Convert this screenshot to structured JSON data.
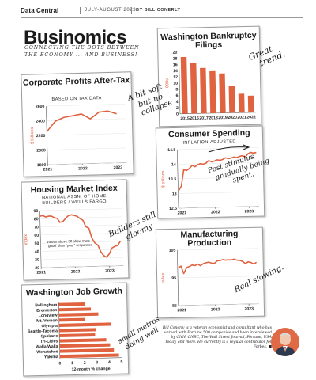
{
  "header": {
    "brand": "Data Central",
    "issue": "JULY-AUGUST 2023",
    "byline": "BY BILL CONERLY"
  },
  "masthead": "Businomics",
  "tagline": "CONNECTING THE DOTS BETWEEN THE ECONOMY ... AND BUSINESS!",
  "colors": {
    "accent": "#e0623f",
    "ink": "#1a1a1a"
  },
  "notes": {
    "bankruptcy": [
      "Great",
      "trend."
    ],
    "profits": [
      "A bit soft",
      "but no",
      "collapse"
    ],
    "spending": [
      "Post stimulus",
      "gradually being",
      "spent."
    ],
    "housing": [
      "Builders still",
      "gloomy"
    ],
    "manufacturing": [
      "Real slowing."
    ],
    "jobs": [
      "small metros",
      "doing well"
    ]
  },
  "bio": "Bill Conerly is a veteran economist and consultant who has worked with Fortune 500 companies and been interviewed by CNN, CNBC, The Wall Street Journal, Fortune, USA Today, and more. He currently is a regular contributor for Forbes. ■",
  "avatar_icon": "person-portrait-icon",
  "chart_data": [
    {
      "id": "bankruptcy",
      "type": "bar",
      "title": "Washington Bankruptcy Filings",
      "ylabel": "000s",
      "ylim": [
        0,
        20
      ],
      "yticks": [
        0,
        2,
        4,
        6,
        8,
        10,
        12,
        14,
        16,
        18,
        20
      ],
      "categories": [
        "2015",
        "2016",
        "2017",
        "2018",
        "2019",
        "2020",
        "2021",
        "2022"
      ],
      "values": [
        18.4,
        16.5,
        14.7,
        13.6,
        12.8,
        8.7,
        6.1,
        5.4
      ]
    },
    {
      "id": "profits",
      "type": "line",
      "title": "Corporate Profits After-Tax",
      "subtitle": "BASED ON TAX DATA",
      "ylabel": "$ billions",
      "ylim": [
        1800,
        2600
      ],
      "yticks": [
        1800,
        2000,
        2200,
        2400,
        2600
      ],
      "xticks": [
        2021,
        2022,
        2023
      ],
      "x": [
        2021.0,
        2021.25,
        2021.5,
        2021.75,
        2022.0,
        2022.25,
        2022.5,
        2022.75,
        2023.0
      ],
      "y": [
        2250,
        2390,
        2440,
        2460,
        2480,
        2410,
        2500,
        2510,
        2470
      ]
    },
    {
      "id": "spending",
      "type": "line",
      "title": "Consumer Spending",
      "subtitle": "INFLATION-ADJUSTED",
      "ylabel": "$ trillions",
      "ylim": [
        12.5,
        14.5
      ],
      "yticks": [
        12.5,
        13.0,
        13.5,
        14.0,
        14.5
      ],
      "xticks": [
        2021,
        2022,
        2023
      ],
      "x": [
        2020.92,
        2021.0,
        2021.08,
        2021.17,
        2021.25,
        2021.33,
        2021.42,
        2021.5,
        2021.58,
        2021.67,
        2021.75,
        2021.83,
        2021.92,
        2022.0,
        2022.08,
        2022.17,
        2022.25,
        2022.33,
        2022.42,
        2022.5,
        2022.58,
        2022.67,
        2022.75,
        2022.83,
        2022.92,
        2023.0,
        2023.08,
        2023.17,
        2023.25
      ],
      "y": [
        13.1,
        13.25,
        13.8,
        13.78,
        13.85,
        13.95,
        13.9,
        13.97,
        14.0,
        13.98,
        14.02,
        14.1,
        14.05,
        14.08,
        14.12,
        14.1,
        14.13,
        14.18,
        14.15,
        14.17,
        14.2,
        14.18,
        14.22,
        14.24,
        14.2,
        14.3,
        14.35,
        14.32,
        14.34
      ]
    },
    {
      "id": "housing",
      "type": "line",
      "title": "Housing Market Index",
      "subtitle": "NATIONAL ASSN. OF HOME BUILDERS / WELLS FARGO",
      "ylabel": "index",
      "annotation": "values above 50 show more \"good\" than \"poor\" responses",
      "ylim": [
        20,
        90
      ],
      "yticks": [
        20,
        30,
        40,
        50,
        60,
        70,
        80,
        90
      ],
      "xticks": [
        2021,
        2022,
        2023
      ],
      "x": [
        2021.0,
        2021.08,
        2021.17,
        2021.25,
        2021.33,
        2021.42,
        2021.5,
        2021.58,
        2021.67,
        2021.75,
        2021.83,
        2021.92,
        2022.0,
        2022.08,
        2022.17,
        2022.25,
        2022.33,
        2022.42,
        2022.5,
        2022.58,
        2022.67,
        2022.75,
        2022.83,
        2022.92,
        2023.0,
        2023.08,
        2023.17,
        2023.25,
        2023.33
      ],
      "y": [
        83,
        84,
        82,
        83,
        83,
        81,
        80,
        75,
        76,
        80,
        83,
        84,
        83,
        82,
        79,
        77,
        69,
        67,
        55,
        49,
        46,
        38,
        33,
        31,
        35,
        42,
        44,
        45,
        50
      ]
    },
    {
      "id": "manufacturing",
      "type": "line",
      "title": "Manufacturing Production",
      "ylabel": "index",
      "ylim": [
        85,
        105
      ],
      "yticks": [
        85,
        95,
        105
      ],
      "xticks": [
        2021,
        2022,
        2023
      ],
      "x": [
        2020.92,
        2021.0,
        2021.08,
        2021.17,
        2021.25,
        2021.33,
        2021.42,
        2021.5,
        2021.58,
        2021.67,
        2021.75,
        2021.83,
        2021.92,
        2022.0,
        2022.08,
        2022.17,
        2022.25,
        2022.33,
        2022.42,
        2022.5,
        2022.58,
        2022.67,
        2022.75,
        2022.83,
        2022.92,
        2023.0,
        2023.08,
        2023.17,
        2023.25
      ],
      "y": [
        98.5,
        99.2,
        96.5,
        98.6,
        99.0,
        99.5,
        99.3,
        99.8,
        99.2,
        99.9,
        100.2,
        100.4,
        100.0,
        99.9,
        100.8,
        100.9,
        101.2,
        101.0,
        101.1,
        101.0,
        101.3,
        100.9,
        100.8,
        100.5,
        99.6,
        100.2,
        100.0,
        99.4,
        100.0
      ]
    },
    {
      "id": "jobs",
      "type": "bar",
      "orientation": "horizontal",
      "title": "Washington Job Growth",
      "xlabel": "12-month % change",
      "xlim": [
        0,
        5
      ],
      "xticks": [
        0,
        1,
        2,
        3,
        4,
        5
      ],
      "categories": [
        "Bellingham",
        "Bremerton",
        "Longview",
        "Mt. Vernon",
        "Olympia",
        "Seattle-Tacoma",
        "Spokane",
        "Tri-Cities",
        "Walla Walla",
        "Wenatchee",
        "Yakima"
      ],
      "values": [
        2.1,
        2.6,
        3.2,
        2.1,
        4.2,
        3.0,
        2.9,
        3.8,
        4.1,
        4.4,
        4.8
      ]
    }
  ]
}
